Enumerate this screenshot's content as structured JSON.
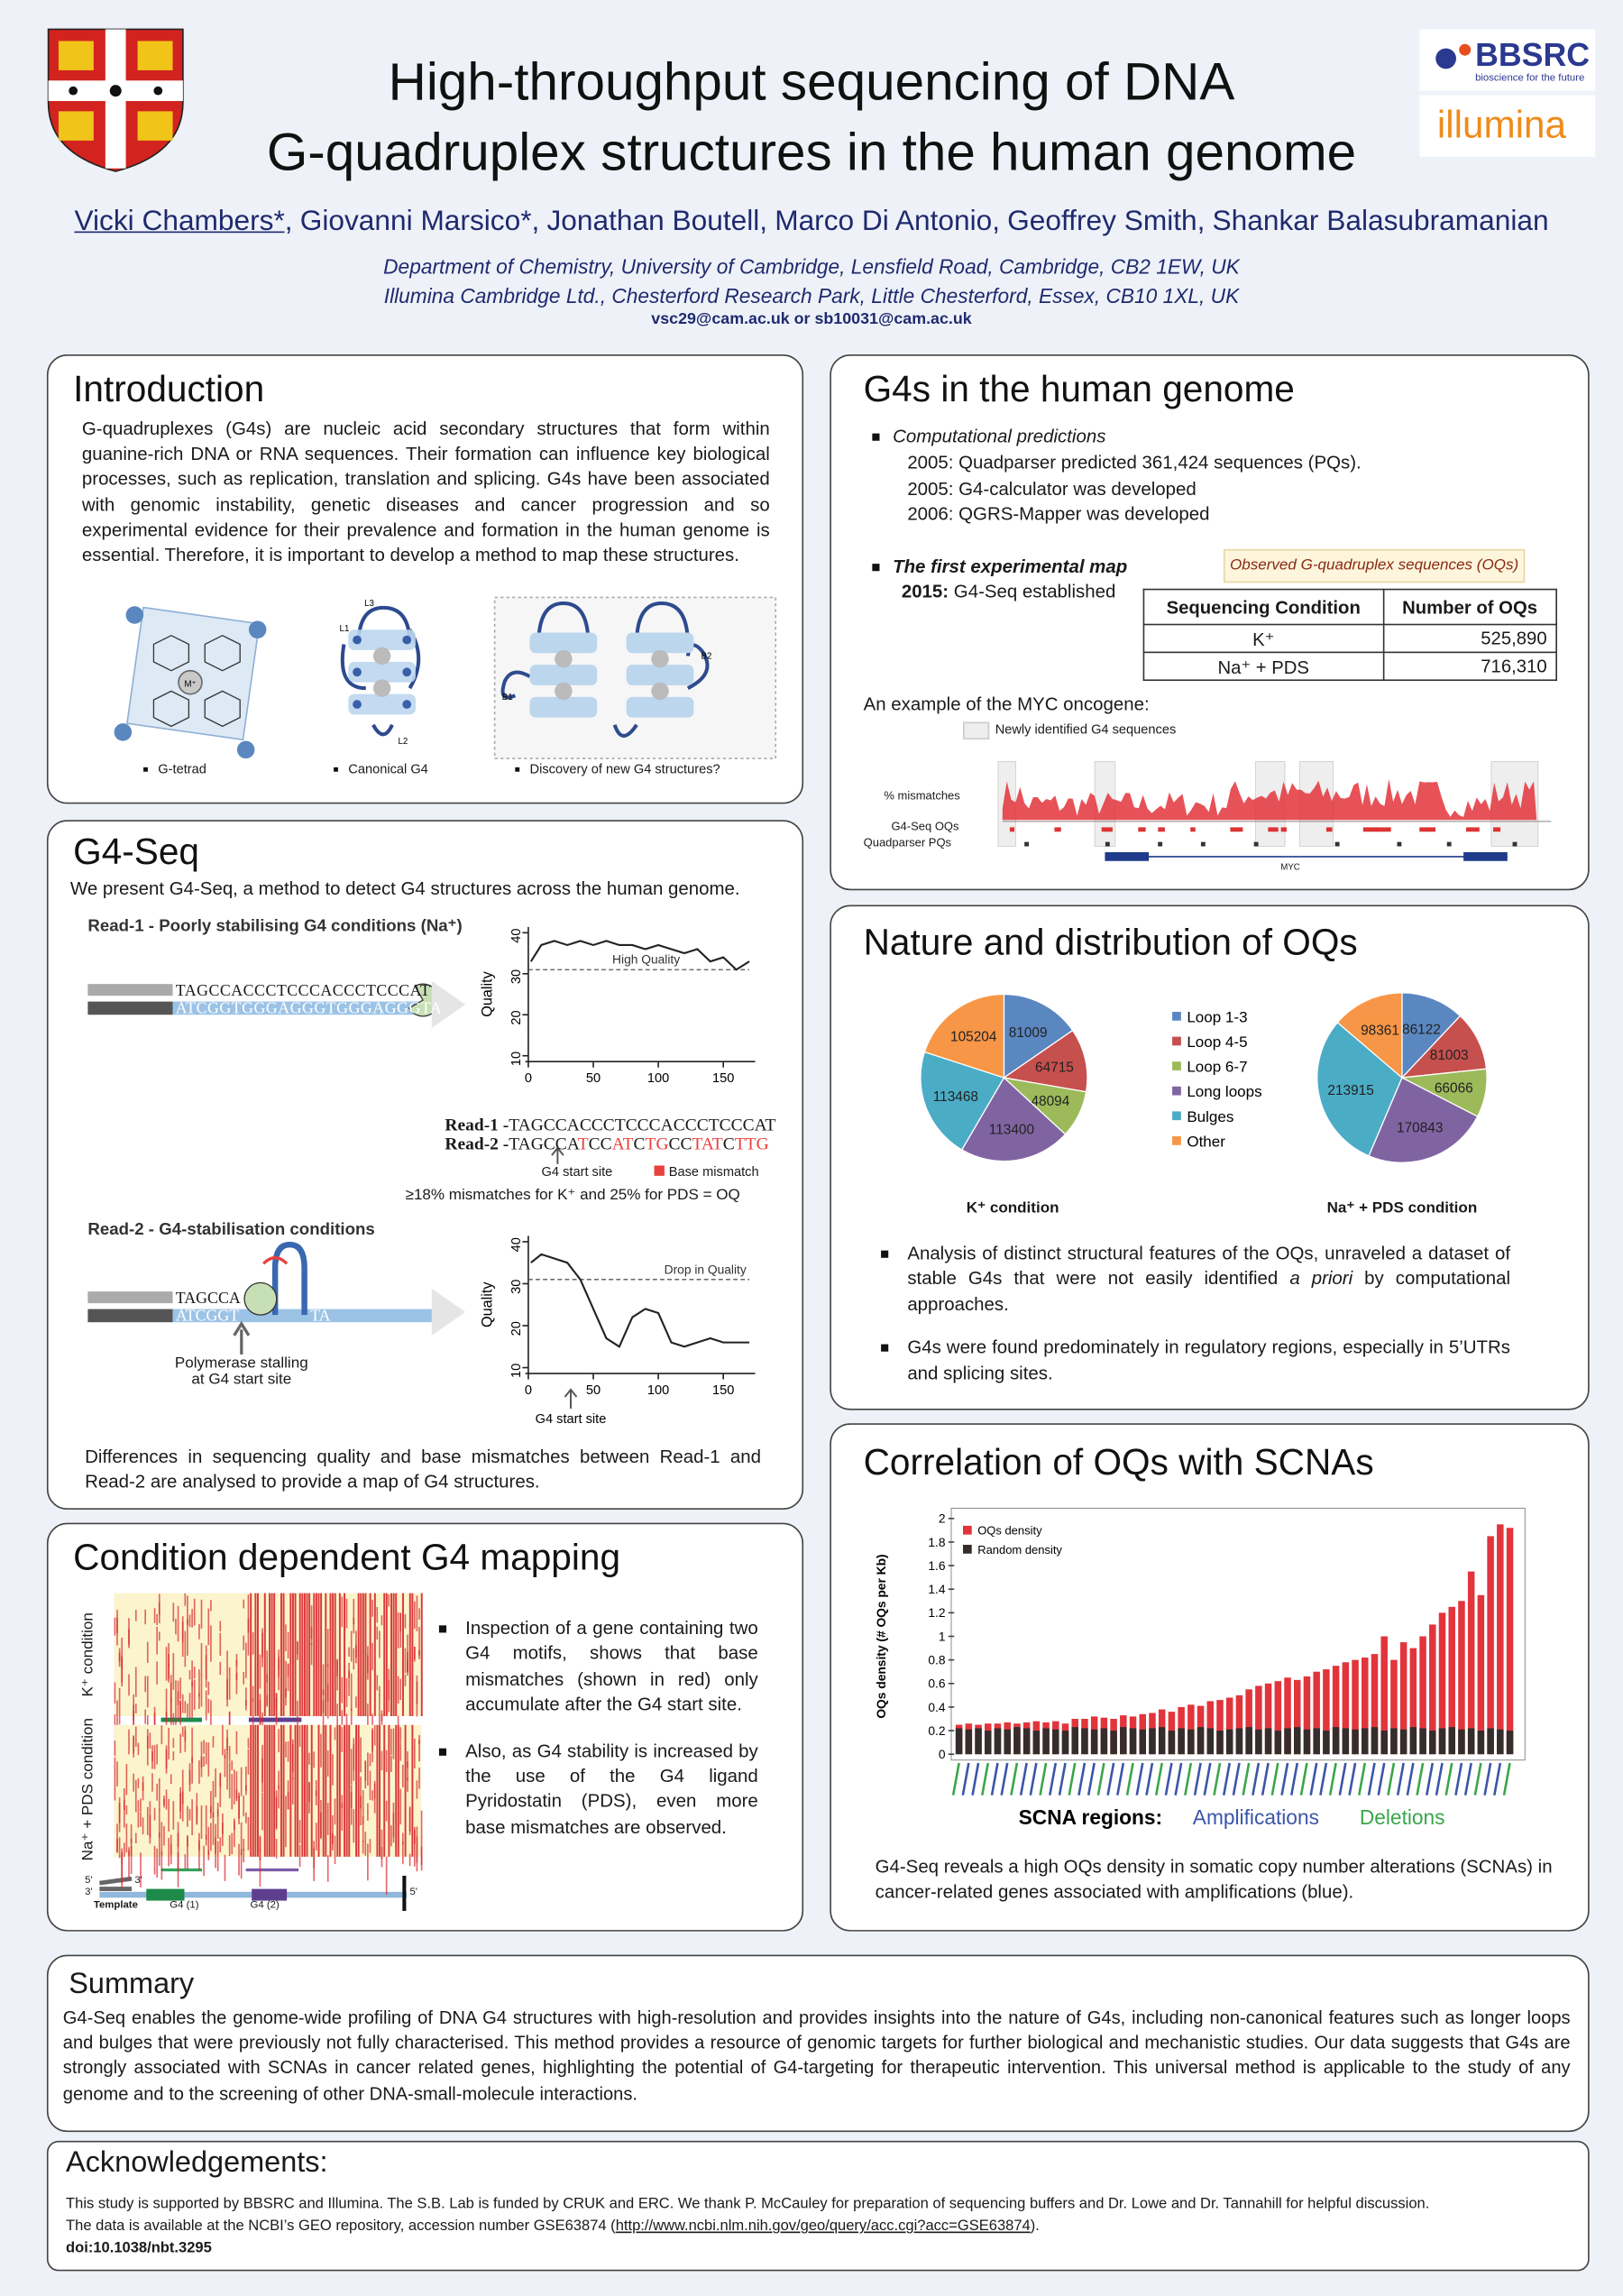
{
  "header": {
    "title_lines": [
      "High-throughput sequencing of DNA",
      "G-quadruplex structures in the human genome"
    ],
    "authors": [
      "Vicki Chambers*,",
      "Giovanni Marsico*,",
      "Jonathan Boutell,",
      "Marco Di Antonio,",
      "Geoffrey Smith,",
      "Shankar Balasubramanian"
    ],
    "affiliations": [
      "Department of Chemistry, University of Cambridge, Lensfield Road, Cambridge, CB2 1EW, UK",
      "Illumina Cambridge Ltd., Chesterford Research Park, Little Chesterford, Essex, CB10 1XL, UK"
    ],
    "contact": "vsc29@cam.ac.uk or sb10031@cam.ac.uk",
    "logos": {
      "bbsrc": "BBSRC",
      "bbsrc_tagline": "bioscience for the future",
      "illumina": "illumina"
    }
  },
  "introduction": {
    "heading": "Introduction",
    "text": "G-quadruplexes (G4s) are nucleic acid secondary structures that form within guanine-rich DNA or RNA sequences. Their formation can influence key biological processes, such as replication, translation and splicing. G4s have been associated with genomic instability, genetic diseases and cancer progression and so experimental evidence for their prevalence and formation in the human genome is essential. Therefore, it is important to develop a method to map these structures.",
    "figure_captions": [
      "G-tetrad",
      "Canonical G4",
      "Discovery of new G4 structures?"
    ],
    "figure_labels": {
      "metal": "M⁺",
      "loops": [
        "L1",
        "L2",
        "L3"
      ],
      "bulges": [
        "B1",
        "B2"
      ]
    }
  },
  "genome": {
    "heading": "G4s in the human genome",
    "predictions_title": "Computational predictions",
    "predictions": [
      "2005: Quadparser predicted 361,424 sequences (PQs).",
      "2005: G4-calculator was developed",
      "2006: QGRS-Mapper was developed"
    ],
    "map_title": "The first experimental map",
    "map_year": "2015:",
    "map_text": "G4-Seq established",
    "table_caption": "Observed G-quadruplex sequences (OQs)",
    "table": {
      "header": [
        "Sequencing Condition",
        "Number of OQs"
      ],
      "rows": [
        [
          "K⁺",
          "525,890"
        ],
        [
          "Na⁺ + PDS",
          "716,310"
        ]
      ]
    },
    "example": "An example of the MYC oncogene:",
    "legend": "Newly identified G4 sequences",
    "tracks": [
      "% mismatches",
      "G4-Seq OQs",
      "Quadparser PQs"
    ],
    "gene": "MYC"
  },
  "g4seq": {
    "heading": "G4-Seq",
    "intro": "We present G4-Seq, a method to detect G4 structures across the human genome.",
    "read1_title": "Read-1 - Poorly stabilising G4 conditions (Na⁺)",
    "read1_top": "TAGCCACCCTCCCACCCTCCCAT",
    "read1_bottom": "ATCGGTGGGAGGGTGGGAGGGTA",
    "chart1": {
      "type": "line",
      "ylabel": "Quality",
      "annotation": "High Quality",
      "reference": 31,
      "xlim": [
        0,
        170
      ],
      "xticks": [
        0,
        50,
        100,
        150
      ],
      "ylim": [
        10,
        40
      ],
      "yticks": [
        10,
        20,
        30,
        40
      ],
      "color": "#222",
      "x": [
        2,
        10,
        20,
        30,
        40,
        50,
        60,
        70,
        80,
        90,
        100,
        110,
        120,
        130,
        140,
        150,
        160,
        170
      ],
      "values": [
        33,
        37,
        38,
        37,
        38,
        37,
        38,
        37,
        37,
        36,
        37,
        36,
        35,
        36,
        33,
        34,
        31,
        33
      ]
    },
    "reads": {
      "labels": [
        "Read-1 -",
        "Read-2 -"
      ],
      "sequences": [
        "TAGCCACCCTCCCACCCTCCCAT",
        "TAGCCATCCATCTGCCTATCTTG"
      ],
      "start_site": "G4 start site",
      "mismatch_legend": "Base mismatch",
      "mismatch_color": "#e8413c"
    },
    "criterion": "≥18% mismatches for K⁺ and 25% for PDS = OQ",
    "read2_title": "Read-2 - G4-stabilisation conditions",
    "read2_top": "TAGCCA",
    "read2_bottom": "ATCGGT",
    "read2_tail": "TA",
    "polymerase": [
      "Polymerase stalling",
      "at G4 start site"
    ],
    "chart2": {
      "type": "line",
      "ylabel": "Quality",
      "annotation": "Drop in Quality",
      "reference": 31,
      "start_site": "G4 start site",
      "xlim": [
        0,
        170
      ],
      "xticks": [
        0,
        50,
        100,
        150
      ],
      "ylim": [
        10,
        40
      ],
      "yticks": [
        10,
        20,
        30,
        40
      ],
      "color": "#222",
      "x": [
        2,
        10,
        20,
        30,
        40,
        50,
        60,
        70,
        80,
        90,
        100,
        110,
        120,
        130,
        140,
        150,
        160,
        170
      ],
      "values": [
        35,
        37,
        36,
        35,
        31,
        24,
        17,
        15,
        22,
        24,
        23,
        16,
        15,
        16,
        17,
        16,
        16,
        16
      ]
    },
    "conclusion": "Differences in sequencing quality and base mismatches between Read-1 and Read-2 are analysed to provide a map of G4 structures."
  },
  "condition": {
    "heading": "Condition dependent G4 mapping",
    "row_labels": [
      "K⁺ condition",
      "Na⁺ + PDS condition"
    ],
    "bullets": [
      "Inspection of a gene containing two G4 motifs, shows that base mismatches (shown in red) only accumulate after the G4 start site.",
      "Also, as G4 stability is increased by the use of the G4 ligand Pyridostatin (PDS), even more base mismatches are observed."
    ],
    "template": "Template",
    "motifs": [
      "G4 (1)",
      "G4 (2)"
    ],
    "ends": [
      "5'",
      "3'"
    ]
  },
  "nature": {
    "heading": "Nature and distribution of OQs",
    "categories": [
      "Loop 1-3",
      "Loop 4-5",
      "Loop 6-7",
      "Long loops",
      "Bulges",
      "Other"
    ],
    "colors": [
      "#5b87c0",
      "#c6504e",
      "#9cba59",
      "#8064a2",
      "#4bacc6",
      "#f79646"
    ],
    "pies": [
      {
        "type": "pie",
        "title": "K⁺ condition",
        "values": [
          81009,
          64715,
          48094,
          113400,
          113468,
          105204
        ]
      },
      {
        "type": "pie",
        "title": "Na⁺ + PDS condition",
        "values": [
          86122,
          81003,
          66066,
          170843,
          213915,
          98361
        ]
      }
    ],
    "bullet1": [
      "Analysis of distinct structural features of the OQs, unraveled a dataset of stable G4s that were not easily identified ",
      "a priori",
      " by computational approaches."
    ],
    "bullet2": "G4s were found predominately in regulatory regions, especially in 5’UTRs and splicing sites."
  },
  "correlation": {
    "heading": "Correlation of OQs with SCNAs",
    "chart": {
      "type": "bar",
      "ylabel": "OQs density (# OQs per Kb)",
      "ylim": [
        0,
        2
      ],
      "yticks": [
        0,
        0.2,
        0.4,
        0.6,
        0.8,
        1,
        1.2,
        1.4,
        1.6,
        1.8,
        2
      ],
      "series": [
        {
          "name": "OQs density",
          "color": "#e2343b",
          "values": [
            0.25,
            0.26,
            0.25,
            0.26,
            0.26,
            0.27,
            0.26,
            0.27,
            0.28,
            0.27,
            0.28,
            0.26,
            0.3,
            0.3,
            0.32,
            0.31,
            0.3,
            0.33,
            0.32,
            0.34,
            0.35,
            0.38,
            0.36,
            0.4,
            0.42,
            0.41,
            0.45,
            0.46,
            0.48,
            0.5,
            0.55,
            0.58,
            0.6,
            0.62,
            0.65,
            0.63,
            0.66,
            0.7,
            0.72,
            0.75,
            0.78,
            0.8,
            0.82,
            0.85,
            1.0,
            0.8,
            0.95,
            0.9,
            1.0,
            1.1,
            1.2,
            1.25,
            1.3,
            1.55,
            1.35,
            1.85,
            1.95,
            1.92
          ]
        },
        {
          "name": "Random density",
          "color": "#342d2c",
          "values": [
            0.22,
            0.21,
            0.22,
            0.2,
            0.22,
            0.21,
            0.23,
            0.22,
            0.2,
            0.22,
            0.21,
            0.2,
            0.23,
            0.22,
            0.21,
            0.22,
            0.2,
            0.23,
            0.22,
            0.21,
            0.22,
            0.23,
            0.2,
            0.22,
            0.21,
            0.23,
            0.22,
            0.2,
            0.21,
            0.22,
            0.23,
            0.21,
            0.22,
            0.2,
            0.22,
            0.23,
            0.21,
            0.22,
            0.2,
            0.23,
            0.22,
            0.21,
            0.22,
            0.23,
            0.2,
            0.22,
            0.21,
            0.23,
            0.22,
            0.2,
            0.22,
            0.23,
            0.21,
            0.22,
            0.2,
            0.22,
            0.21,
            0.2
          ]
        }
      ],
      "xlabel": "SCNA regions:",
      "groups": [
        "Amplifications",
        "Deletions"
      ],
      "group_colors": [
        "#3b55a8",
        "#3aa64a"
      ]
    },
    "text": "G4-Seq reveals a high OQs density in somatic copy number alterations (SCNAs) in cancer-related genes associated with amplifications (blue)."
  },
  "summary": {
    "heading": "Summary",
    "text": "G4-Seq enables the genome-wide profiling of DNA G4 structures with high-resolution and provides insights into the nature of G4s, including non-canonical features such as longer loops and bulges that were previously not fully characterised. This method provides a resource of genomic targets for further biological and mechanistic studies. Our data suggests that G4s are strongly associated with SCNAs in cancer related genes, highlighting the potential of G4-targeting for therapeutic intervention. This universal method is applicable to the study of any genome and to the screening of other DNA-small-molecule interactions."
  },
  "acknowledgements": {
    "heading": "Acknowledgements:",
    "line1": "This study is supported by BBSRC and Illumina. The S.B. Lab is funded by CRUK and ERC. We thank P. McCauley for preparation of sequencing buffers and Dr. Lowe and Dr. Tannahill for helpful discussion.",
    "line2": "The data is available at the NCBI’s GEO repository, accession number GSE63874 (",
    "link": "http://www.ncbi.nlm.nih.gov/geo/query/acc.cgi?acc=GSE63874",
    "line2_end": ").",
    "doi": "doi:10.1038/nbt.3295"
  }
}
